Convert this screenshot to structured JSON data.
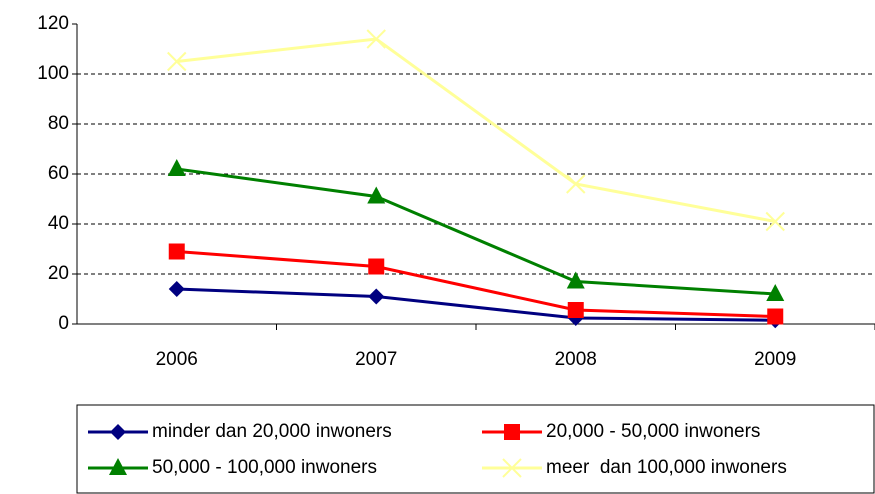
{
  "chart_data": {
    "type": "line",
    "categories": [
      "2006",
      "2007",
      "2008",
      "2009"
    ],
    "series": [
      {
        "name": "minder dan 20,000 inwoners",
        "color": "#000080",
        "marker": "diamond",
        "values": [
          14,
          11,
          2.4,
          1.5
        ]
      },
      {
        "name": "20,000 - 50,000 inwoners",
        "color": "#ff0000",
        "marker": "square",
        "values": [
          29,
          23,
          5.6,
          3
        ]
      },
      {
        "name": "50,000 - 100,000 inwoners",
        "color": "#008000",
        "marker": "triangle",
        "values": [
          62,
          51,
          17,
          12
        ]
      },
      {
        "name": "meer  dan 100,000 inwoners",
        "color": "#ffff99",
        "marker": "x",
        "values": [
          105,
          114,
          56,
          41
        ]
      }
    ],
    "ylim": [
      0,
      120
    ],
    "yticks": [
      0,
      20,
      40,
      60,
      80,
      100,
      120
    ],
    "grid": true,
    "legend": "bottom"
  }
}
